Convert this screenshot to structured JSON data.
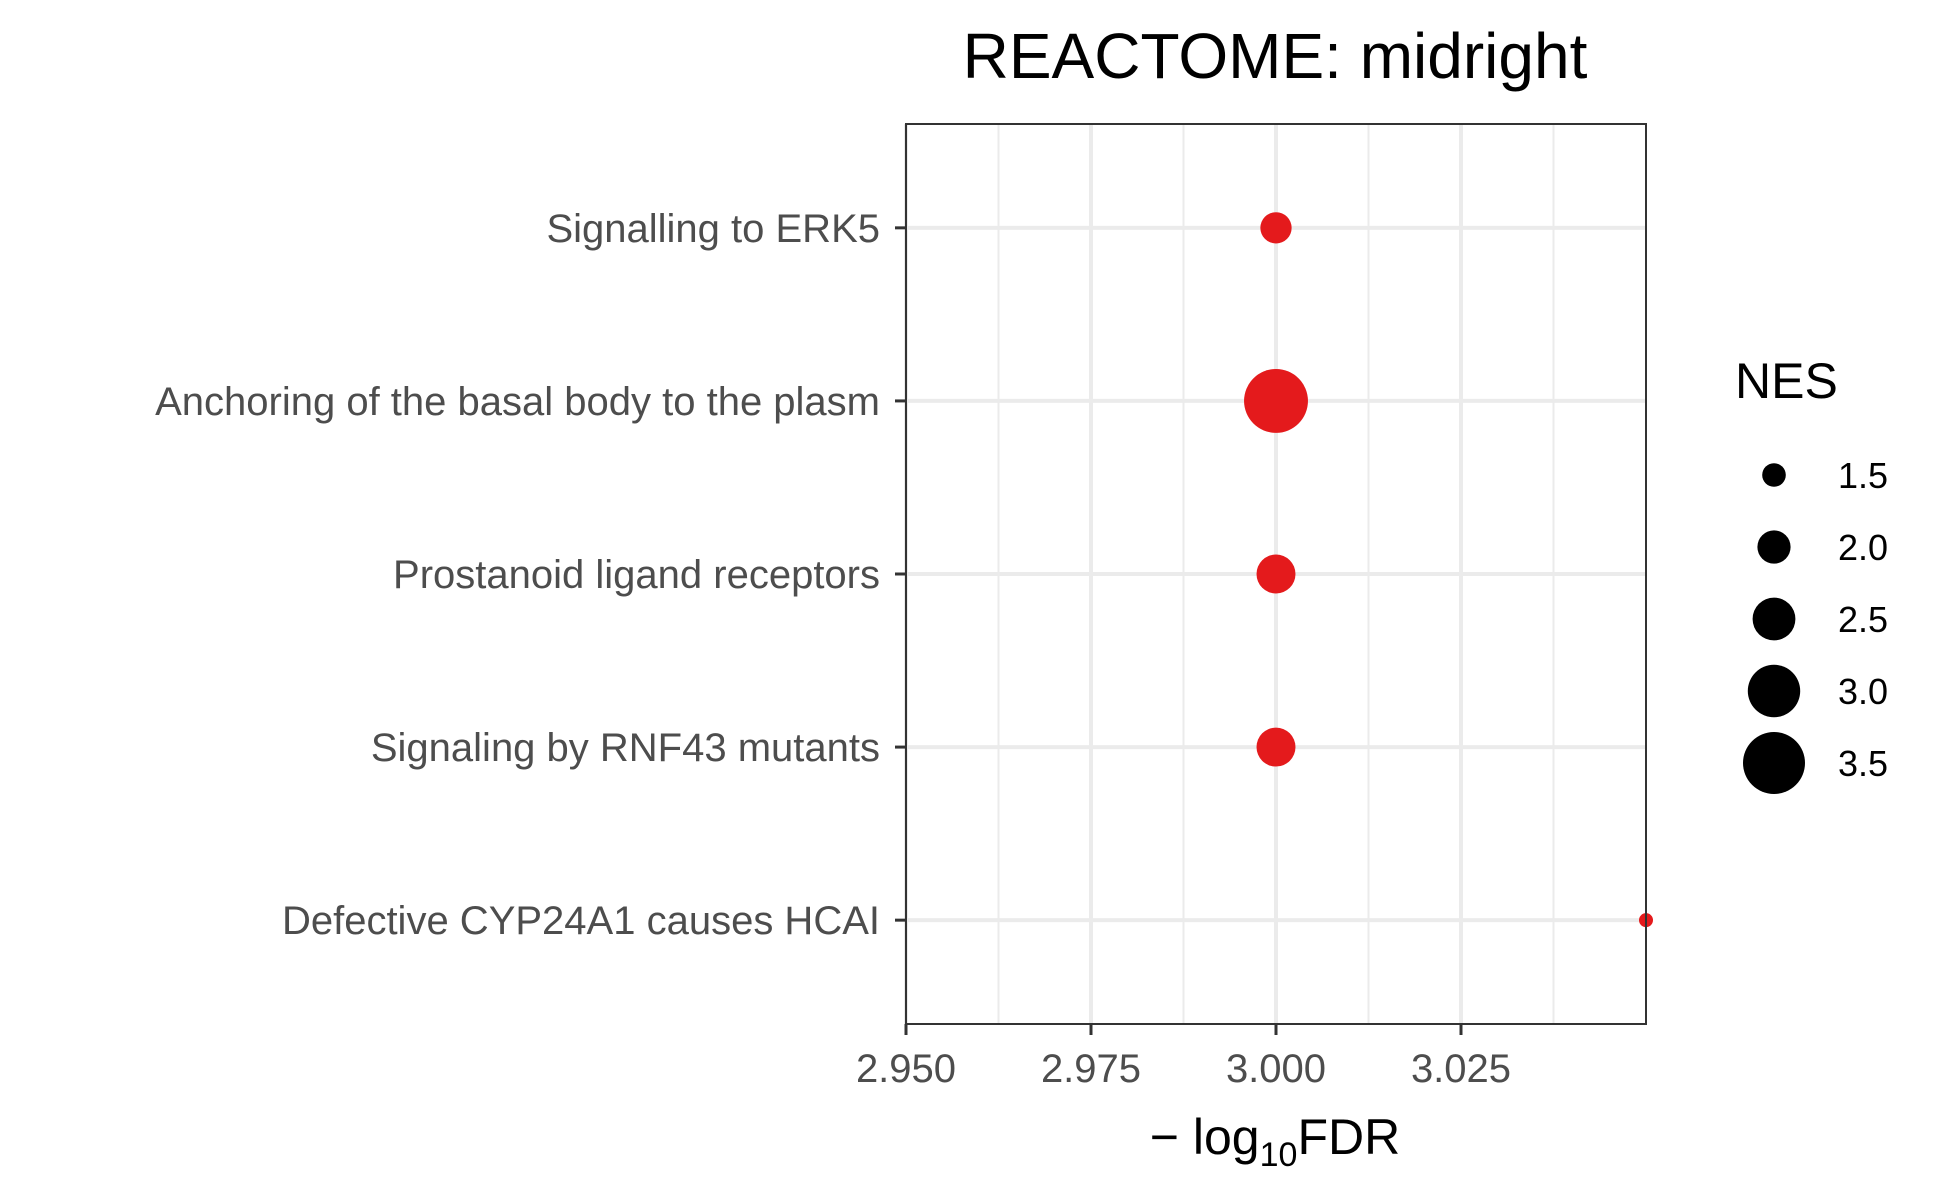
{
  "chart_data": {
    "type": "scatter",
    "title": "REACTOME: midright",
    "xlabel": {
      "prefix": "− log",
      "subscript": "10",
      "suffix": "FDR"
    },
    "ylabel": "",
    "xlim": [
      2.95,
      3.05
    ],
    "x_ticks": [
      2.95,
      2.975,
      3.0,
      3.025
    ],
    "x_tick_labels": [
      "2.950",
      "2.975",
      "3.000",
      "3.025"
    ],
    "x_minor_grid": [
      2.9625,
      2.9875,
      3.0125,
      3.0375
    ],
    "categories": [
      "Signalling to ERK5",
      "Anchoring of the basal body to the plasm",
      "Prostanoid ligand receptors",
      "Signaling by RNF43 mutants",
      "Defective CYP24A1 causes HCAI"
    ],
    "points": [
      {
        "category": "Signalling to ERK5",
        "x": 3.0,
        "nes": 1.9
      },
      {
        "category": "Anchoring of the basal body to the plasm",
        "x": 3.0,
        "nes": 3.6
      },
      {
        "category": "Prostanoid ligand receptors",
        "x": 3.0,
        "nes": 2.3
      },
      {
        "category": "Signaling by RNF43 mutants",
        "x": 3.0,
        "nes": 2.3
      },
      {
        "category": "Defective CYP24A1 causes HCAI",
        "x": 3.05,
        "nes": 1.0
      }
    ],
    "point_color": "#e41a1c",
    "size_legend": {
      "title": "NES",
      "values": [
        1.5,
        2.0,
        2.5,
        3.0,
        3.5
      ],
      "labels": [
        "1.5",
        "2.0",
        "2.5",
        "3.0",
        "3.5"
      ]
    },
    "grid": true,
    "legend_position": "right"
  }
}
